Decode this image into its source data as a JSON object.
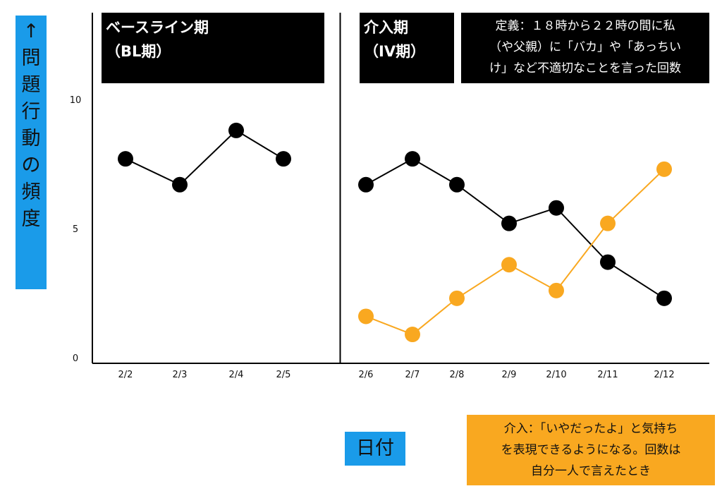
{
  "y_axis_label": [
    "↑",
    "問",
    "題",
    "行",
    "動",
    "の",
    "頻",
    "度"
  ],
  "x_axis_label": "日付",
  "phase_bl_title": "ベースライン期",
  "phase_bl_sub": "（BL期）",
  "phase_iv_title": "介入期",
  "phase_iv_sub": "（IV期）",
  "definition": "定義：１８時から２２時の間に私\n（や父親）に「バカ」や「あっちい\nけ」など不適切なことを言った回数",
  "intervention": "介入：「いやだったよ」と気持ち\nを表現できるようになる。回数は\n自分一人で言えたとき",
  "chart_data": {
    "type": "line",
    "ylim": [
      0,
      10
    ],
    "yticks": [
      0,
      5,
      10
    ],
    "categories": [
      "2/2",
      "2/3",
      "2/4",
      "2/5",
      "2/6",
      "2/7",
      "2/8",
      "2/9",
      "2/10",
      "2/11",
      "2/12"
    ],
    "phase_change_between": [
      "2/5",
      "2/6"
    ],
    "series": [
      {
        "color": "#000000",
        "values": [
          7.7,
          6.7,
          8.8,
          7.7,
          null,
          null,
          null,
          null,
          null,
          null,
          null
        ]
      },
      {
        "color": "#000000",
        "values": [
          null,
          null,
          null,
          null,
          6.7,
          7.7,
          6.7,
          5.2,
          5.8,
          3.7,
          2.3
        ]
      },
      {
        "color": "#f9a820",
        "values": [
          null,
          null,
          null,
          null,
          1.6,
          0.9,
          2.3,
          3.6,
          2.6,
          5.2,
          7.3
        ]
      }
    ]
  }
}
